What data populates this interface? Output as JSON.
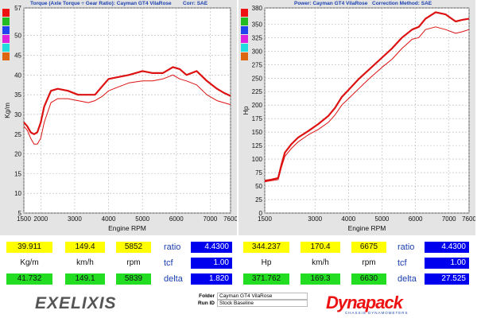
{
  "chart_data": [
    {
      "type": "line",
      "title": "Torque (Axle Torque ÷ Gear Ratio): Cayman GT4 VilaRose",
      "correction": "Corr: SAE",
      "xlabel": "Engine RPM",
      "ylabel": "Kg/m",
      "xlim": [
        1500,
        7600
      ],
      "ylim": [
        5,
        57
      ],
      "xticks": [
        1500,
        2000,
        3000,
        4000,
        5000,
        6000,
        7000,
        7600
      ],
      "xtick_labels": [
        "1500",
        "2000",
        "3000",
        "4000",
        "5000",
        "6000",
        "7000",
        "7600"
      ],
      "yticks": [
        5,
        10,
        15,
        20,
        25,
        30,
        35,
        40,
        45,
        50,
        57
      ],
      "grid": true,
      "series": [
        {
          "color": "#dd1111",
          "x": [
            1500,
            1600,
            1700,
            1800,
            1900,
            2000,
            2100,
            2300,
            2500,
            2800,
            3100,
            3400,
            3600,
            3800,
            4000,
            4300,
            4600,
            5000,
            5300,
            5600,
            5900,
            6100,
            6300,
            6600,
            6900,
            7200,
            7400,
            7600
          ],
          "y": [
            28,
            27,
            25.5,
            25,
            25.5,
            28,
            32,
            36,
            36.5,
            36,
            35,
            35,
            35,
            37,
            39,
            39.5,
            40,
            41,
            40.5,
            40.5,
            42,
            41.5,
            40,
            41,
            38.5,
            36.5,
            35.5,
            34.7
          ]
        },
        {
          "color": "#dd1111",
          "x": [
            1500,
            1600,
            1700,
            1800,
            1900,
            2000,
            2100,
            2300,
            2500,
            2800,
            3100,
            3400,
            3600,
            3800,
            4000,
            4300,
            4600,
            5000,
            5300,
            5600,
            5900,
            6100,
            6300,
            6600,
            6900,
            7200,
            7400,
            7600
          ],
          "y": [
            27,
            26,
            24,
            22.5,
            22.5,
            24,
            28,
            33,
            34,
            34,
            33.5,
            33,
            33.5,
            34.5,
            36,
            37,
            38,
            38.5,
            38.5,
            39,
            40,
            39,
            38.5,
            37.5,
            35,
            33.5,
            33,
            32.5
          ]
        }
      ]
    },
    {
      "type": "line",
      "title": "Power: Cayman GT4 VilaRose",
      "correction": "Correction Method: SAE",
      "xlabel": "Engine RPM",
      "ylabel": "Hp",
      "xlim": [
        1500,
        7600
      ],
      "ylim": [
        0,
        380
      ],
      "xticks": [
        1500,
        3000,
        4000,
        5000,
        6000,
        7000,
        7600
      ],
      "xtick_labels": [
        "1500",
        "3000",
        "4000",
        "5000",
        "6000",
        "7000",
        "7600"
      ],
      "yticks": [
        0,
        25,
        50,
        75,
        100,
        125,
        150,
        175,
        200,
        225,
        250,
        275,
        300,
        325,
        350,
        380
      ],
      "grid": true,
      "series": [
        {
          "color": "#dd1111",
          "x": [
            1500,
            1700,
            1900,
            2000,
            2100,
            2300,
            2500,
            2800,
            3100,
            3400,
            3600,
            3800,
            4000,
            4300,
            4600,
            5000,
            5300,
            5600,
            5900,
            6100,
            6300,
            6600,
            6900,
            7200,
            7400,
            7600
          ],
          "y": [
            60,
            62,
            65,
            90,
            112,
            128,
            140,
            152,
            165,
            180,
            195,
            215,
            228,
            248,
            265,
            288,
            305,
            325,
            340,
            345,
            360,
            372,
            368,
            355,
            358,
            360
          ]
        },
        {
          "color": "#dd1111",
          "x": [
            1500,
            1700,
            1900,
            2000,
            2100,
            2300,
            2500,
            2800,
            3100,
            3400,
            3600,
            3800,
            4000,
            4300,
            4600,
            5000,
            5300,
            5600,
            5900,
            6100,
            6300,
            6600,
            6900,
            7200,
            7400,
            7600
          ],
          "y": [
            58,
            60,
            62,
            85,
            105,
            120,
            132,
            145,
            155,
            168,
            182,
            200,
            212,
            230,
            248,
            270,
            285,
            305,
            322,
            325,
            340,
            345,
            340,
            333,
            336,
            340
          ]
        }
      ]
    }
  ],
  "swatches": [
    "#ee1111",
    "#22bb22",
    "#2244ee",
    "#dd22dd",
    "#22dddd",
    "#dd6611"
  ],
  "readouts": {
    "left": {
      "row1": [
        "39.911",
        "149.4",
        "5852"
      ],
      "labels": [
        "Kg/m",
        "km/h",
        "rpm"
      ],
      "row3": [
        "41.732",
        "149.1",
        "5839"
      ],
      "ratio_label": "ratio",
      "ratio": "4.4300",
      "tcf_label": "tcf",
      "tcf": "1.00",
      "delta_label": "delta",
      "delta": "1.820"
    },
    "right": {
      "row1": [
        "344.237",
        "170.4",
        "6675"
      ],
      "labels": [
        "Hp",
        "km/h",
        "rpm"
      ],
      "row3": [
        "371.762",
        "169.3",
        "6630"
      ],
      "ratio_label": "ratio",
      "ratio": "4.4300",
      "tcf_label": "tcf",
      "tcf": "1.00",
      "delta_label": "delta",
      "delta": "27.525"
    }
  },
  "footer": {
    "logo_left": "EXELIXIS",
    "folder_label": "Folder",
    "folder": "Cayman GT4 VilaRose",
    "run_label": "Run ID",
    "run": "Stock Baseline",
    "logo_right": "Dynapack",
    "logo_right_sub": "CHASSIS DYNAMOMETERS"
  }
}
